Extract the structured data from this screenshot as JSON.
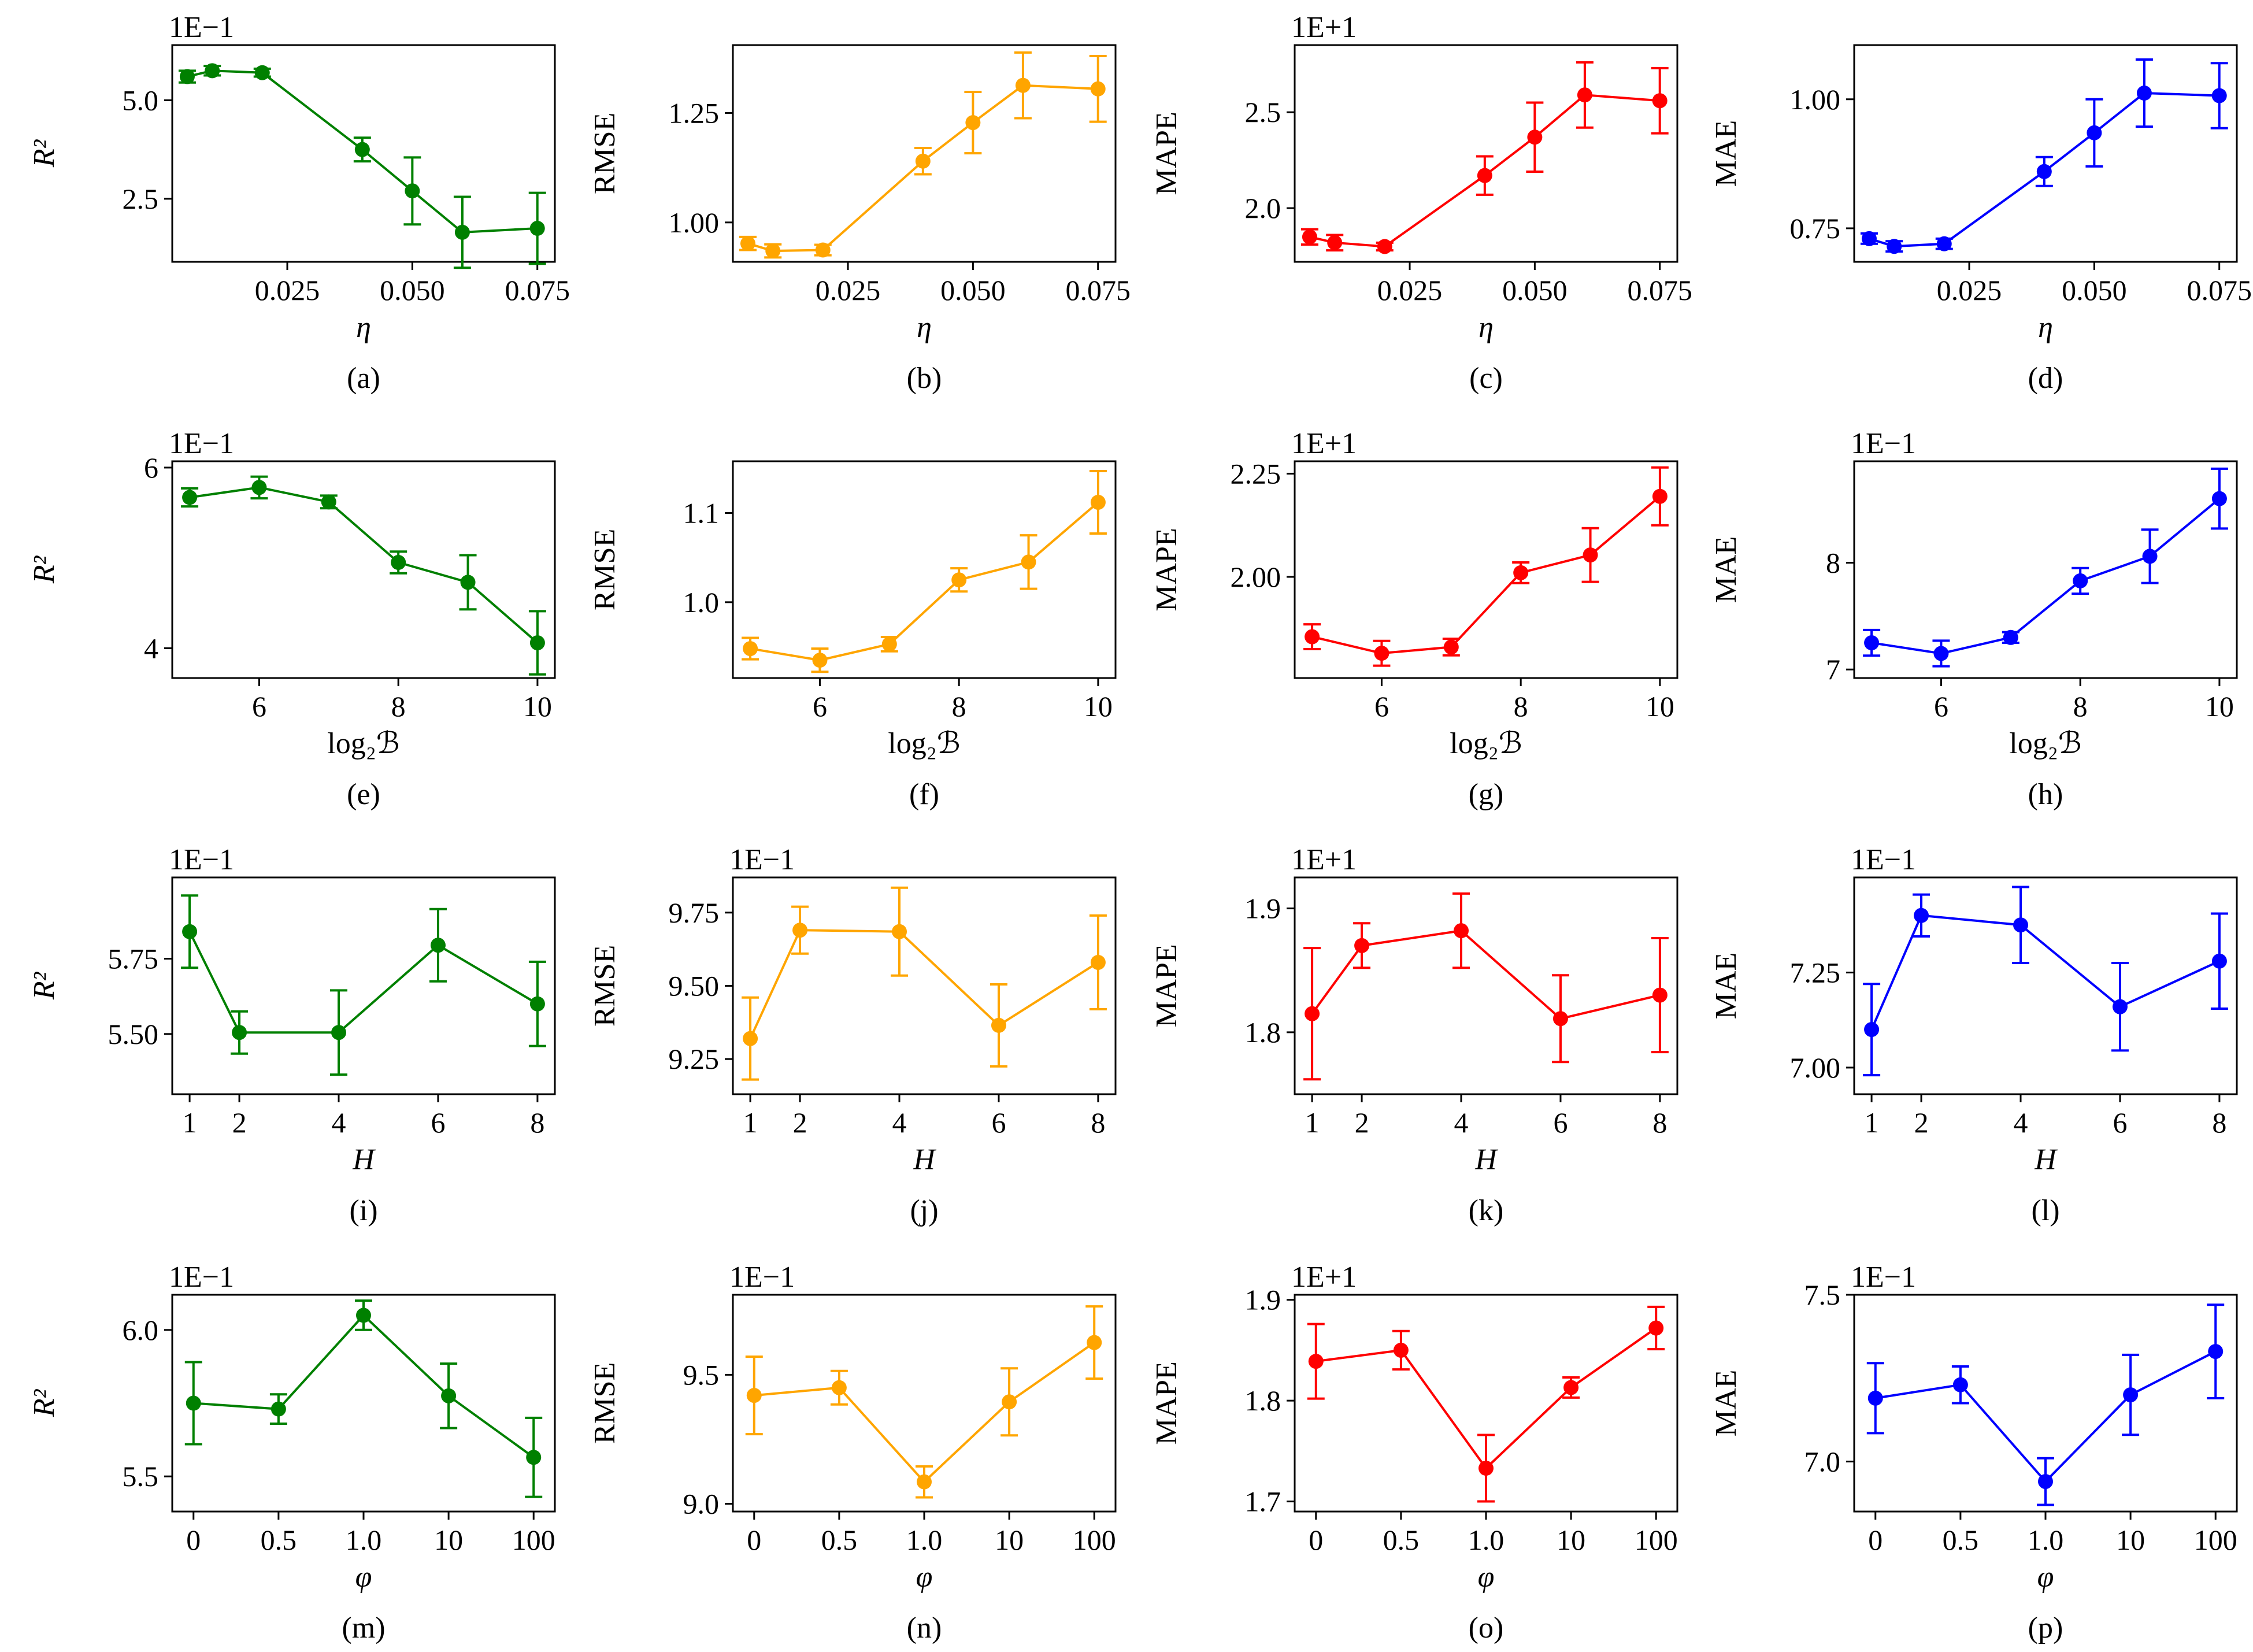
{
  "chart_data": [
    {
      "id": "a",
      "type": "line",
      "caption": "(a)",
      "xlabel": "η",
      "xlabel_italic": true,
      "ylabel": "R²",
      "ylabel_italic": true,
      "offset": "1E−1",
      "color": "#008000",
      "xscale": "linear",
      "xlim": [
        0.002,
        0.0785
      ],
      "xticks": [
        0.025,
        0.05,
        0.075
      ],
      "xtick_labels": [
        "0.025",
        "0.050",
        "0.075"
      ],
      "ylim": [
        0.9,
        6.4
      ],
      "yticks": [
        2.5,
        5.0
      ],
      "ytick_labels": [
        "2.5",
        "5.0"
      ],
      "x": [
        0.005,
        0.01,
        0.02,
        0.04,
        0.05,
        0.06,
        0.075
      ],
      "values": [
        5.6,
        5.75,
        5.7,
        3.75,
        2.7,
        1.65,
        1.75
      ],
      "yerr": [
        0.15,
        0.12,
        0.1,
        0.3,
        0.85,
        0.9,
        0.9
      ]
    },
    {
      "id": "b",
      "type": "line",
      "caption": "(b)",
      "xlabel": "η",
      "xlabel_italic": true,
      "ylabel": "RMSE",
      "ylabel_italic": false,
      "offset": "",
      "color": "#FFA500",
      "xscale": "linear",
      "xlim": [
        0.002,
        0.0785
      ],
      "xticks": [
        0.025,
        0.05,
        0.075
      ],
      "xtick_labels": [
        "0.025",
        "0.050",
        "0.075"
      ],
      "ylim": [
        0.91,
        1.405
      ],
      "yticks": [
        1.0,
        1.25
      ],
      "ytick_labels": [
        "1.00",
        "1.25"
      ],
      "x": [
        0.005,
        0.01,
        0.02,
        0.04,
        0.05,
        0.06,
        0.075
      ],
      "values": [
        0.952,
        0.935,
        0.937,
        1.14,
        1.228,
        1.313,
        1.305
      ],
      "yerr": [
        0.015,
        0.015,
        0.012,
        0.03,
        0.07,
        0.075,
        0.075
      ]
    },
    {
      "id": "c",
      "type": "line",
      "caption": "(c)",
      "xlabel": "η",
      "xlabel_italic": true,
      "ylabel": "MAPE",
      "ylabel_italic": false,
      "offset": "1E+1",
      "color": "#FF0000",
      "xscale": "linear",
      "xlim": [
        0.002,
        0.0785
      ],
      "xticks": [
        0.025,
        0.05,
        0.075
      ],
      "xtick_labels": [
        "0.025",
        "0.050",
        "0.075"
      ],
      "ylim": [
        1.72,
        2.85
      ],
      "yticks": [
        2.0,
        2.5
      ],
      "ytick_labels": [
        "2.0",
        "2.5"
      ],
      "x": [
        0.005,
        0.01,
        0.02,
        0.04,
        0.05,
        0.06,
        0.075
      ],
      "values": [
        1.85,
        1.82,
        1.8,
        2.17,
        2.37,
        2.59,
        2.56
      ],
      "yerr": [
        0.04,
        0.04,
        0.02,
        0.1,
        0.18,
        0.17,
        0.17
      ]
    },
    {
      "id": "d",
      "type": "line",
      "caption": "(d)",
      "xlabel": "η",
      "xlabel_italic": true,
      "ylabel": "MAE",
      "ylabel_italic": false,
      "offset": "",
      "color": "#0000FF",
      "xscale": "linear",
      "xlim": [
        0.002,
        0.0785
      ],
      "xticks": [
        0.025,
        0.05,
        0.075
      ],
      "xtick_labels": [
        "0.025",
        "0.050",
        "0.075"
      ],
      "ylim": [
        0.685,
        1.105
      ],
      "yticks": [
        0.75,
        1.0
      ],
      "ytick_labels": [
        "0.75",
        "1.00"
      ],
      "x": [
        0.005,
        0.01,
        0.02,
        0.04,
        0.05,
        0.06,
        0.075
      ],
      "values": [
        0.73,
        0.715,
        0.72,
        0.86,
        0.935,
        1.012,
        1.007
      ],
      "yerr": [
        0.01,
        0.01,
        0.01,
        0.028,
        0.065,
        0.065,
        0.063
      ]
    },
    {
      "id": "e",
      "type": "line",
      "caption": "(e)",
      "xlabel": "log₂ℬ",
      "xlabel_italic": false,
      "ylabel": "R²",
      "ylabel_italic": true,
      "offset": "1E−1",
      "color": "#008000",
      "xscale": "linear",
      "xlim": [
        4.75,
        10.25
      ],
      "xticks": [
        6,
        8,
        10
      ],
      "xtick_labels": [
        "6",
        "8",
        "10"
      ],
      "ylim": [
        3.67,
        6.07
      ],
      "yticks": [
        4,
        6
      ],
      "ytick_labels": [
        "4",
        "6"
      ],
      "x": [
        5,
        6,
        7,
        8,
        9,
        10
      ],
      "values": [
        5.67,
        5.78,
        5.62,
        4.95,
        4.73,
        4.06
      ],
      "yerr": [
        0.1,
        0.12,
        0.07,
        0.12,
        0.3,
        0.35
      ]
    },
    {
      "id": "f",
      "type": "line",
      "caption": "(f)",
      "xlabel": "log₂ℬ",
      "xlabel_italic": false,
      "ylabel": "RMSE",
      "ylabel_italic": false,
      "offset": "",
      "color": "#FFA500",
      "xscale": "linear",
      "xlim": [
        4.75,
        10.25
      ],
      "xticks": [
        6,
        8,
        10
      ],
      "xtick_labels": [
        "6",
        "8",
        "10"
      ],
      "ylim": [
        0.915,
        1.158
      ],
      "yticks": [
        1.0,
        1.1
      ],
      "ytick_labels": [
        "1.0",
        "1.1"
      ],
      "x": [
        5,
        6,
        7,
        8,
        9,
        10
      ],
      "values": [
        0.948,
        0.935,
        0.953,
        1.025,
        1.045,
        1.112
      ],
      "yerr": [
        0.012,
        0.013,
        0.008,
        0.013,
        0.03,
        0.035
      ]
    },
    {
      "id": "g",
      "type": "line",
      "caption": "(g)",
      "xlabel": "log₂ℬ",
      "xlabel_italic": false,
      "ylabel": "MAPE",
      "ylabel_italic": false,
      "offset": "1E+1",
      "color": "#FF0000",
      "xscale": "linear",
      "xlim": [
        4.75,
        10.25
      ],
      "xticks": [
        6,
        8,
        10
      ],
      "xtick_labels": [
        "6",
        "8",
        "10"
      ],
      "ylim": [
        1.755,
        2.28
      ],
      "yticks": [
        2.0,
        2.25
      ],
      "ytick_labels": [
        "2.00",
        "2.25"
      ],
      "x": [
        5,
        6,
        7,
        8,
        9,
        10
      ],
      "values": [
        1.855,
        1.815,
        1.83,
        2.01,
        2.053,
        2.195
      ],
      "yerr": [
        0.03,
        0.03,
        0.02,
        0.025,
        0.065,
        0.07
      ]
    },
    {
      "id": "h",
      "type": "line",
      "caption": "(h)",
      "xlabel": "log₂ℬ",
      "xlabel_italic": false,
      "ylabel": "MAE",
      "ylabel_italic": false,
      "offset": "1E−1",
      "color": "#0000FF",
      "xscale": "linear",
      "xlim": [
        4.75,
        10.25
      ],
      "xticks": [
        6,
        8,
        10
      ],
      "xtick_labels": [
        "6",
        "8",
        "10"
      ],
      "ylim": [
        6.92,
        8.95
      ],
      "yticks": [
        7,
        8
      ],
      "ytick_labels": [
        "7",
        "8"
      ],
      "x": [
        5,
        6,
        7,
        8,
        9,
        10
      ],
      "values": [
        7.25,
        7.15,
        7.3,
        7.83,
        8.06,
        8.6
      ],
      "yerr": [
        0.12,
        0.12,
        0.05,
        0.12,
        0.25,
        0.28
      ]
    },
    {
      "id": "i",
      "type": "line",
      "caption": "(i)",
      "xlabel": "H",
      "xlabel_italic": true,
      "ylabel": "R²",
      "ylabel_italic": true,
      "offset": "1E−1",
      "color": "#008000",
      "xscale": "linear",
      "xlim": [
        0.65,
        8.35
      ],
      "xticks": [
        1,
        2,
        4,
        6,
        8
      ],
      "xtick_labels": [
        "1",
        "2",
        "4",
        "6",
        "8"
      ],
      "ylim": [
        5.3,
        6.02
      ],
      "yticks": [
        5.5,
        5.75
      ],
      "ytick_labels": [
        "5.50",
        "5.75"
      ],
      "x": [
        1,
        2,
        4,
        6,
        8
      ],
      "values": [
        5.84,
        5.505,
        5.505,
        5.795,
        5.6
      ],
      "yerr": [
        0.12,
        0.07,
        0.14,
        0.12,
        0.14
      ]
    },
    {
      "id": "j",
      "type": "line",
      "caption": "(j)",
      "xlabel": "H",
      "xlabel_italic": true,
      "ylabel": "RMSE",
      "ylabel_italic": false,
      "offset": "1E−1",
      "color": "#FFA500",
      "xscale": "linear",
      "xlim": [
        0.65,
        8.35
      ],
      "xticks": [
        1,
        2,
        4,
        6,
        8
      ],
      "xtick_labels": [
        "1",
        "2",
        "4",
        "6",
        "8"
      ],
      "ylim": [
        9.13,
        9.87
      ],
      "yticks": [
        9.25,
        9.5,
        9.75
      ],
      "ytick_labels": [
        "9.25",
        "9.50",
        "9.75"
      ],
      "x": [
        1,
        2,
        4,
        6,
        8
      ],
      "values": [
        9.32,
        9.69,
        9.685,
        9.365,
        9.58
      ],
      "yerr": [
        0.14,
        0.08,
        0.15,
        0.14,
        0.16
      ]
    },
    {
      "id": "k",
      "type": "line",
      "caption": "(k)",
      "xlabel": "H",
      "xlabel_italic": true,
      "ylabel": "MAPE",
      "ylabel_italic": false,
      "offset": "1E+1",
      "color": "#FF0000",
      "xscale": "linear",
      "xlim": [
        0.65,
        8.35
      ],
      "xticks": [
        1,
        2,
        4,
        6,
        8
      ],
      "xtick_labels": [
        "1",
        "2",
        "4",
        "6",
        "8"
      ],
      "ylim": [
        1.75,
        1.925
      ],
      "yticks": [
        1.8,
        1.9
      ],
      "ytick_labels": [
        "1.8",
        "1.9"
      ],
      "x": [
        1,
        2,
        4,
        6,
        8
      ],
      "values": [
        1.815,
        1.87,
        1.882,
        1.811,
        1.83
      ],
      "yerr": [
        0.053,
        0.018,
        0.03,
        0.035,
        0.046
      ]
    },
    {
      "id": "l",
      "type": "line",
      "caption": "(l)",
      "xlabel": "H",
      "xlabel_italic": true,
      "ylabel": "MAE",
      "ylabel_italic": false,
      "offset": "1E−1",
      "color": "#0000FF",
      "xscale": "linear",
      "xlim": [
        0.65,
        8.35
      ],
      "xticks": [
        1,
        2,
        4,
        6,
        8
      ],
      "xtick_labels": [
        "1",
        "2",
        "4",
        "6",
        "8"
      ],
      "ylim": [
        6.93,
        7.5
      ],
      "yticks": [
        7.0,
        7.25
      ],
      "ytick_labels": [
        "7.00",
        "7.25"
      ],
      "x": [
        1,
        2,
        4,
        6,
        8
      ],
      "values": [
        7.1,
        7.4,
        7.375,
        7.16,
        7.28
      ],
      "yerr": [
        0.12,
        0.055,
        0.1,
        0.115,
        0.125
      ]
    },
    {
      "id": "m",
      "type": "line",
      "caption": "(m)",
      "xlabel": "φ",
      "xlabel_italic": true,
      "ylabel": "R²",
      "ylabel_italic": true,
      "offset": "1E−1",
      "color": "#008000",
      "xscale": "category",
      "xlim": [
        -0.25,
        4.25
      ],
      "xticks": [
        0,
        1,
        2,
        3,
        4
      ],
      "xtick_labels": [
        "0",
        "0.5",
        "1.0",
        "10",
        "100"
      ],
      "ylim": [
        5.38,
        6.12
      ],
      "yticks": [
        5.5,
        6.0
      ],
      "ytick_labels": [
        "5.5",
        "6.0"
      ],
      "x": [
        0,
        1,
        2,
        3,
        4
      ],
      "values": [
        5.75,
        5.73,
        6.05,
        5.775,
        5.565
      ],
      "yerr": [
        0.14,
        0.05,
        0.05,
        0.11,
        0.135
      ]
    },
    {
      "id": "n",
      "type": "line",
      "caption": "(n)",
      "xlabel": "φ",
      "xlabel_italic": true,
      "ylabel": "RMSE",
      "ylabel_italic": false,
      "offset": "1E−1",
      "color": "#FFA500",
      "xscale": "category",
      "xlim": [
        -0.25,
        4.25
      ],
      "xticks": [
        0,
        1,
        2,
        3,
        4
      ],
      "xtick_labels": [
        "0",
        "0.5",
        "1.0",
        "10",
        "100"
      ],
      "ylim": [
        8.97,
        9.81
      ],
      "yticks": [
        9.0,
        9.5
      ],
      "ytick_labels": [
        "9.0",
        "9.5"
      ],
      "x": [
        0,
        1,
        2,
        3,
        4
      ],
      "values": [
        9.42,
        9.45,
        9.085,
        9.395,
        9.625
      ],
      "yerr": [
        0.15,
        0.065,
        0.06,
        0.13,
        0.14
      ]
    },
    {
      "id": "o",
      "type": "line",
      "caption": "(o)",
      "xlabel": "φ",
      "xlabel_italic": true,
      "ylabel": "MAPE",
      "ylabel_italic": false,
      "offset": "1E+1",
      "color": "#FF0000",
      "xscale": "category",
      "xlim": [
        -0.25,
        4.25
      ],
      "xticks": [
        0,
        1,
        2,
        3,
        4
      ],
      "xtick_labels": [
        "0",
        "0.5",
        "1.0",
        "10",
        "100"
      ],
      "ylim": [
        1.69,
        1.905
      ],
      "yticks": [
        1.7,
        1.8,
        1.9
      ],
      "ytick_labels": [
        "1.7",
        "1.8",
        "1.9"
      ],
      "x": [
        0,
        1,
        2,
        3,
        4
      ],
      "values": [
        1.839,
        1.85,
        1.733,
        1.813,
        1.872
      ],
      "yerr": [
        0.037,
        0.019,
        0.033,
        0.01,
        0.021
      ]
    },
    {
      "id": "p",
      "type": "line",
      "caption": "(p)",
      "xlabel": "φ",
      "xlabel_italic": true,
      "ylabel": "MAE",
      "ylabel_italic": false,
      "offset": "1E−1",
      "color": "#0000FF",
      "xscale": "category",
      "xlim": [
        -0.25,
        4.25
      ],
      "xticks": [
        0,
        1,
        2,
        3,
        4
      ],
      "xtick_labels": [
        "0",
        "0.5",
        "1.0",
        "10",
        "100"
      ],
      "ylim": [
        6.85,
        7.5
      ],
      "yticks": [
        7.0,
        7.5
      ],
      "ytick_labels": [
        "7.0",
        "7.5"
      ],
      "x": [
        0,
        1,
        2,
        3,
        4
      ],
      "values": [
        7.19,
        7.23,
        6.94,
        7.2,
        7.33
      ],
      "yerr": [
        0.105,
        0.055,
        0.07,
        0.12,
        0.14
      ]
    }
  ]
}
